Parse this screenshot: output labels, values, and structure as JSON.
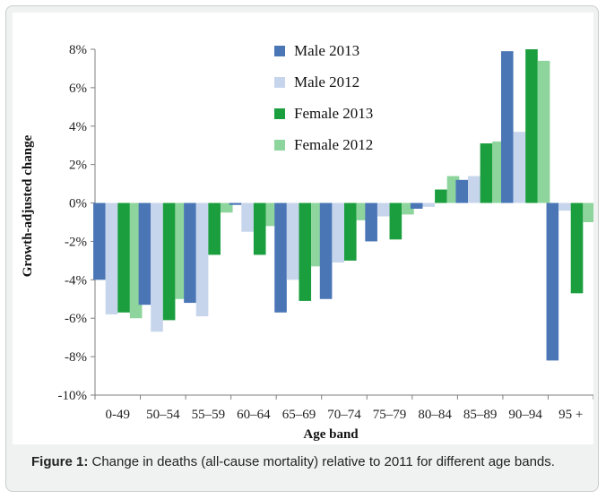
{
  "chart_data": {
    "type": "bar",
    "title": "",
    "xlabel": "Age band",
    "ylabel": "Growth-adjusted change",
    "ylim": [
      -10,
      8
    ],
    "yticks": [
      8,
      6,
      4,
      2,
      0,
      -2,
      -4,
      -6,
      -8,
      -10
    ],
    "ytick_labels": [
      "8%",
      "6%",
      "4%",
      "2%",
      "0%",
      "-2%",
      "-4%",
      "-6%",
      "-8%",
      "-10%"
    ],
    "categories": [
      "0-49",
      "50–54",
      "55–59",
      "60–64",
      "65–69",
      "70–74",
      "75–79",
      "80–84",
      "85–89",
      "90–94",
      "95 +"
    ],
    "series": [
      {
        "name": "Male 2013",
        "color": "#4a76b6",
        "values": [
          -4.0,
          -5.3,
          -5.2,
          -0.1,
          -5.7,
          -5.0,
          -2.0,
          -0.3,
          1.2,
          7.9,
          -8.2
        ]
      },
      {
        "name": "Male 2012",
        "color": "#c6d5ec",
        "values": [
          -5.8,
          -6.7,
          -5.9,
          -1.5,
          -4.0,
          -3.1,
          -0.7,
          -0.2,
          1.4,
          3.7,
          -0.4
        ]
      },
      {
        "name": "Female 2013",
        "color": "#1b9e3e",
        "values": [
          -5.7,
          -6.1,
          -2.7,
          -2.7,
          -5.1,
          -3.0,
          -1.9,
          0.7,
          3.1,
          8.0,
          -4.7
        ]
      },
      {
        "name": "Female 2012",
        "color": "#8ed49d",
        "values": [
          -6.0,
          -5.0,
          -0.5,
          -1.2,
          -3.3,
          -0.9,
          -0.6,
          1.4,
          3.2,
          7.4,
          -1.0
        ]
      }
    ],
    "grid": false,
    "legend_position": "top-left"
  },
  "caption": {
    "label": "Figure 1:",
    "text": " Change in deaths (all-cause mortality) relative to 2011 for different age bands."
  }
}
